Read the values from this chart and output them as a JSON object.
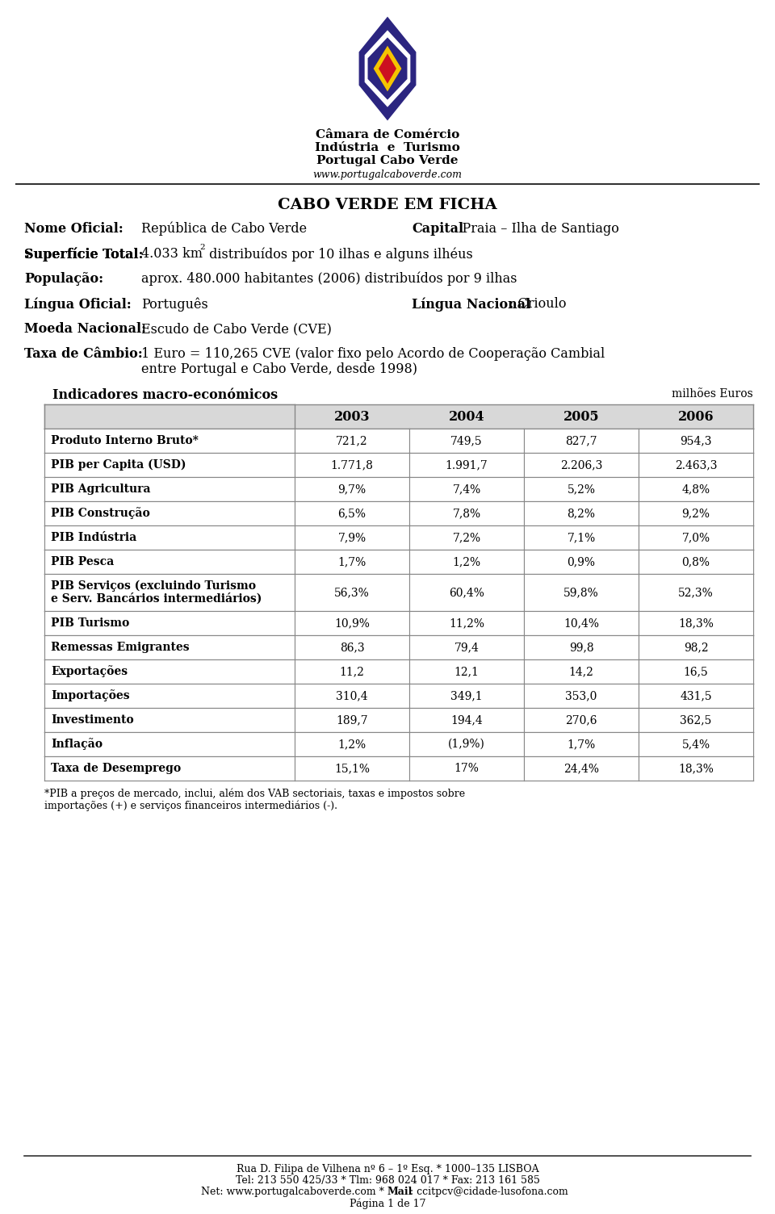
{
  "title": "CABO VERDE EM FICHA",
  "logo_text1": "Câmara de Comércio",
  "logo_text2": "Indústria  e  Turismo",
  "logo_text3": "Portugal Cabo Verde",
  "logo_url": "www.portugalcaboverde.com",
  "footer_line1": "Rua D. Filipa de Vilhena nº 6 – 1º Esq. * 1000–135 LISBOA",
  "footer_line2": "Tel: 213 550 425/33 * Tlm: 968 024 017 * Fax: 213 161 585",
  "footer_line3_pre": "Net: www.portugalcaboverde.com * ",
  "footer_line3_bold": "Mail",
  "footer_line3_post": ": ccitpcv@cidade-lusofona.com",
  "footer_line4": "Página 1 de 17",
  "table_header_left": "Indicadores macro-económicos",
  "table_header_right": "milhões Euros",
  "table_years": [
    "2003",
    "2004",
    "2005",
    "2006"
  ],
  "table_rows": [
    {
      "label": "Produto Interno Bruto*",
      "values": [
        "721,2",
        "749,5",
        "827,7",
        "954,3"
      ]
    },
    {
      "label": "PIB per Capita (USD)",
      "values": [
        "1.771,8",
        "1.991,7",
        "2.206,3",
        "2.463,3"
      ]
    },
    {
      "label": "PIB Agricultura",
      "values": [
        "9,7%",
        "7,4%",
        "5,2%",
        "4,8%"
      ]
    },
    {
      "label": "PIB Construção",
      "values": [
        "6,5%",
        "7,8%",
        "8,2%",
        "9,2%"
      ]
    },
    {
      "label": "PIB Indústria",
      "values": [
        "7,9%",
        "7,2%",
        "7,1%",
        "7,0%"
      ]
    },
    {
      "label": "PIB Pesca",
      "values": [
        "1,7%",
        "1,2%",
        "0,9%",
        "0,8%"
      ]
    },
    {
      "label": "PIB Serviços (excluindo Turismo\ne Serv. Bancários intermediários)",
      "values": [
        "56,3%",
        "60,4%",
        "59,8%",
        "52,3%"
      ]
    },
    {
      "label": "PIB Turismo",
      "values": [
        "10,9%",
        "11,2%",
        "10,4%",
        "18,3%"
      ]
    },
    {
      "label": "Remessas Emigrantes",
      "values": [
        "86,3",
        "79,4",
        "99,8",
        "98,2"
      ]
    },
    {
      "label": "Exportações",
      "values": [
        "11,2",
        "12,1",
        "14,2",
        "16,5"
      ]
    },
    {
      "label": "Importações",
      "values": [
        "310,4",
        "349,1",
        "353,0",
        "431,5"
      ]
    },
    {
      "label": "Investimento",
      "values": [
        "189,7",
        "194,4",
        "270,6",
        "362,5"
      ]
    },
    {
      "label": "Inflação",
      "values": [
        "1,2%",
        "(1,9%)",
        "1,7%",
        "5,4%"
      ]
    },
    {
      "label": "Taxa de Desemprego",
      "values": [
        "15,1%",
        "17%",
        "24,4%",
        "18,3%"
      ]
    }
  ],
  "footnote_star": "*",
  "footnote_text": "  PIB a preços de mercado, inclui, além dos VAB sectoriais, taxas e impostos sobre\n   importações (+) e serviços financeiros intermediários (-).",
  "bg_color": "#ffffff",
  "table_border_color": "#888888",
  "table_year_bg": "#d8d8d8"
}
